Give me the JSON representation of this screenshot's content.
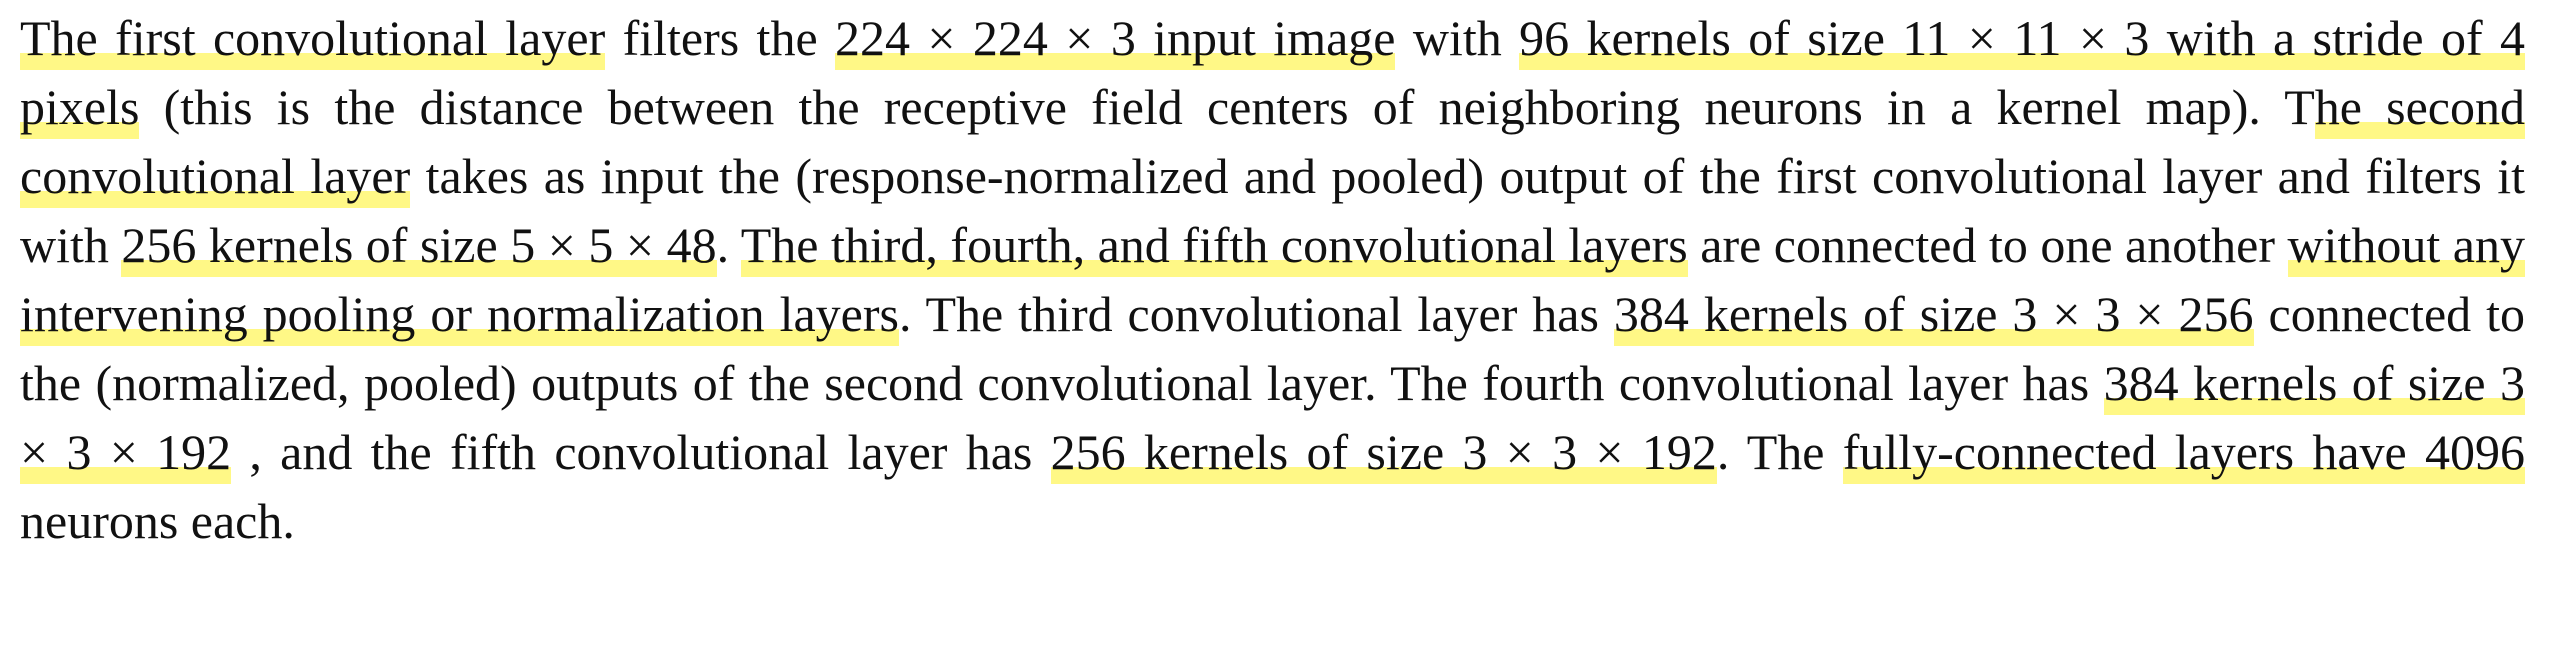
{
  "highlight_color": "#fff886",
  "paragraph": {
    "segments": [
      {
        "text": "The first convolutional layer",
        "hl": true
      },
      {
        "text": " filters the ",
        "hl": false
      },
      {
        "text": "224 × 224 × 3 input image",
        "hl": true
      },
      {
        "text": " with ",
        "hl": false
      },
      {
        "text": "96 kernels of size 11 × 11 × 3 with a stride of 4 pixels",
        "hl": true
      },
      {
        "text": " (this is the distance between the receptive field centers of neighboring neurons in a kernel map). T",
        "hl": false
      },
      {
        "text": "he second convolutional layer",
        "hl": true
      },
      {
        "text": " takes as input the (response-normalized and pooled) output of the first convolutional layer and filters it with ",
        "hl": false
      },
      {
        "text": "256 kernels of size 5 × 5 × 48",
        "hl": true
      },
      {
        "text": ". ",
        "hl": false
      },
      {
        "text": "The third, fourth, and fifth convolutional layers",
        "hl": true
      },
      {
        "text": " are connected to one another ",
        "hl": false
      },
      {
        "text": "without any intervening pooling or normalization layers",
        "hl": true
      },
      {
        "text": ". The third convolutional layer has ",
        "hl": false
      },
      {
        "text": "384 kernels of size 3 × 3 × 256",
        "hl": true
      },
      {
        "text": " connected to the (normalized, pooled) outputs of the second convolutional layer. The fourth convolutional layer has ",
        "hl": false
      },
      {
        "text": "384 kernels of size 3 × 3 × 192",
        "hl": true
      },
      {
        "text": " , and the fifth convolutional layer has ",
        "hl": false
      },
      {
        "text": "256 kernels of size 3 × 3 × 192",
        "hl": true
      },
      {
        "text": ". The ",
        "hl": false
      },
      {
        "text": "fully-connected layers have 4096",
        "hl": true
      },
      {
        "text": " neurons each.",
        "hl": false
      }
    ]
  }
}
